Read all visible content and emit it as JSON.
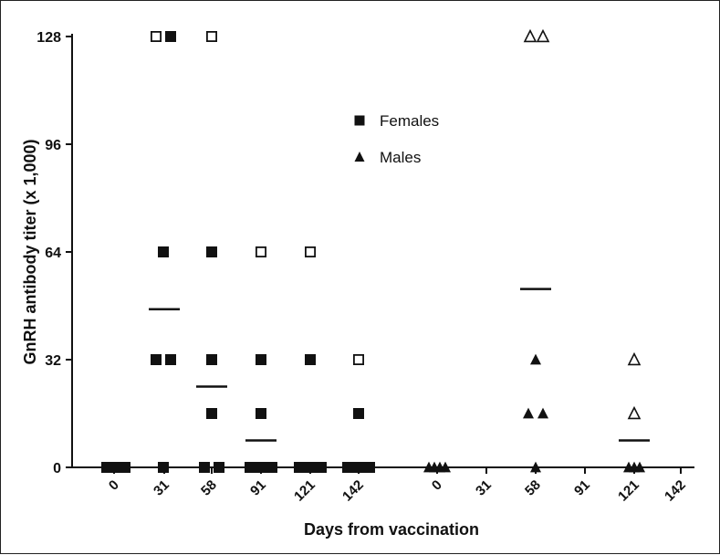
{
  "chart_data": {
    "type": "scatter",
    "xlabel": "Days from vaccination",
    "ylabel": "GnRH antibody titer (x 1,000)",
    "ylim": [
      0,
      128
    ],
    "yticks": [
      "0",
      "32",
      "64",
      "96",
      "128"
    ],
    "ytick_values": [
      0,
      32,
      64,
      96,
      128
    ],
    "groups": [
      {
        "name": "Females",
        "marker": "square",
        "categories": [
          "0",
          "31",
          "58",
          "91",
          "121",
          "142"
        ]
      },
      {
        "name": "Males",
        "marker": "triangle",
        "categories": [
          "0",
          "31",
          "58",
          "91",
          "121",
          "142"
        ]
      }
    ],
    "legend": [
      {
        "label": "Females",
        "marker": "square"
      },
      {
        "label": "Males",
        "marker": "triangle"
      }
    ],
    "legend_position": "top-center",
    "points": [
      {
        "group": 0,
        "x": "0",
        "y": 0,
        "filled": true,
        "jitter": -8
      },
      {
        "group": 0,
        "x": "0",
        "y": 0,
        "filled": true,
        "jitter": -3
      },
      {
        "group": 0,
        "x": "0",
        "y": 0,
        "filled": true,
        "jitter": 2
      },
      {
        "group": 0,
        "x": "0",
        "y": 0,
        "filled": true,
        "jitter": 7
      },
      {
        "group": 0,
        "x": "0",
        "y": 0,
        "filled": true,
        "jitter": 12
      },
      {
        "group": 0,
        "x": "31",
        "y": 128,
        "filled": false,
        "jitter": -9
      },
      {
        "group": 0,
        "x": "31",
        "y": 128,
        "filled": true,
        "jitter": 7
      },
      {
        "group": 0,
        "x": "31",
        "y": 64,
        "filled": true,
        "jitter": -1
      },
      {
        "group": 0,
        "x": "31",
        "y": 32,
        "filled": true,
        "jitter": -9
      },
      {
        "group": 0,
        "x": "31",
        "y": 32,
        "filled": true,
        "jitter": 7
      },
      {
        "group": 0,
        "x": "31",
        "y": 0,
        "filled": true,
        "jitter": -1
      },
      {
        "group": 0,
        "x": "58",
        "y": 128,
        "filled": false,
        "jitter": 0
      },
      {
        "group": 0,
        "x": "58",
        "y": 64,
        "filled": true,
        "jitter": 0
      },
      {
        "group": 0,
        "x": "58",
        "y": 32,
        "filled": true,
        "jitter": 0
      },
      {
        "group": 0,
        "x": "58",
        "y": 16,
        "filled": true,
        "jitter": 0
      },
      {
        "group": 0,
        "x": "58",
        "y": 0,
        "filled": true,
        "jitter": -8
      },
      {
        "group": 0,
        "x": "58",
        "y": 0,
        "filled": true,
        "jitter": 8
      },
      {
        "group": 0,
        "x": "91",
        "y": 64,
        "filled": false,
        "jitter": 0
      },
      {
        "group": 0,
        "x": "91",
        "y": 32,
        "filled": true,
        "jitter": 0
      },
      {
        "group": 0,
        "x": "91",
        "y": 16,
        "filled": true,
        "jitter": 0
      },
      {
        "group": 0,
        "x": "91",
        "y": 0,
        "filled": true,
        "jitter": -12
      },
      {
        "group": 0,
        "x": "91",
        "y": 0,
        "filled": true,
        "jitter": -4
      },
      {
        "group": 0,
        "x": "91",
        "y": 0,
        "filled": true,
        "jitter": 4
      },
      {
        "group": 0,
        "x": "91",
        "y": 0,
        "filled": true,
        "jitter": 12
      },
      {
        "group": 0,
        "x": "121",
        "y": 64,
        "filled": false,
        "jitter": 0
      },
      {
        "group": 0,
        "x": "121",
        "y": 32,
        "filled": true,
        "jitter": 0
      },
      {
        "group": 0,
        "x": "121",
        "y": 0,
        "filled": true,
        "jitter": -12
      },
      {
        "group": 0,
        "x": "121",
        "y": 0,
        "filled": true,
        "jitter": -4
      },
      {
        "group": 0,
        "x": "121",
        "y": 0,
        "filled": true,
        "jitter": 4
      },
      {
        "group": 0,
        "x": "121",
        "y": 0,
        "filled": true,
        "jitter": 12
      },
      {
        "group": 0,
        "x": "142",
        "y": 32,
        "filled": false,
        "jitter": 0
      },
      {
        "group": 0,
        "x": "142",
        "y": 16,
        "filled": true,
        "jitter": 0
      },
      {
        "group": 0,
        "x": "142",
        "y": 0,
        "filled": true,
        "jitter": -12
      },
      {
        "group": 0,
        "x": "142",
        "y": 0,
        "filled": true,
        "jitter": -4
      },
      {
        "group": 0,
        "x": "142",
        "y": 0,
        "filled": true,
        "jitter": 4
      },
      {
        "group": 0,
        "x": "142",
        "y": 0,
        "filled": true,
        "jitter": 12
      },
      {
        "group": 1,
        "x": "0",
        "y": 0,
        "filled": true,
        "jitter": -9
      },
      {
        "group": 1,
        "x": "0",
        "y": 0,
        "filled": true,
        "jitter": -3
      },
      {
        "group": 1,
        "x": "0",
        "y": 0,
        "filled": true,
        "jitter": 3
      },
      {
        "group": 1,
        "x": "0",
        "y": 0,
        "filled": true,
        "jitter": 9
      },
      {
        "group": 1,
        "x": "58",
        "y": 128,
        "filled": false,
        "jitter": -6
      },
      {
        "group": 1,
        "x": "58",
        "y": 128,
        "filled": false,
        "jitter": 8
      },
      {
        "group": 1,
        "x": "58",
        "y": 32,
        "filled": true,
        "jitter": 0
      },
      {
        "group": 1,
        "x": "58",
        "y": 16,
        "filled": true,
        "jitter": -8
      },
      {
        "group": 1,
        "x": "58",
        "y": 16,
        "filled": true,
        "jitter": 8
      },
      {
        "group": 1,
        "x": "58",
        "y": 0,
        "filled": true,
        "jitter": 0
      },
      {
        "group": 1,
        "x": "121",
        "y": 32,
        "filled": false,
        "jitter": 0
      },
      {
        "group": 1,
        "x": "121",
        "y": 16,
        "filled": false,
        "jitter": 0
      },
      {
        "group": 1,
        "x": "121",
        "y": 0,
        "filled": true,
        "jitter": -6
      },
      {
        "group": 1,
        "x": "121",
        "y": 0,
        "filled": true,
        "jitter": 0
      },
      {
        "group": 1,
        "x": "121",
        "y": 0,
        "filled": true,
        "jitter": 6
      }
    ],
    "means": [
      {
        "group": 0,
        "x": "31",
        "y": 47
      },
      {
        "group": 0,
        "x": "58",
        "y": 24
      },
      {
        "group": 0,
        "x": "91",
        "y": 8
      },
      {
        "group": 1,
        "x": "58",
        "y": 53
      },
      {
        "group": 1,
        "x": "121",
        "y": 8
      }
    ]
  }
}
